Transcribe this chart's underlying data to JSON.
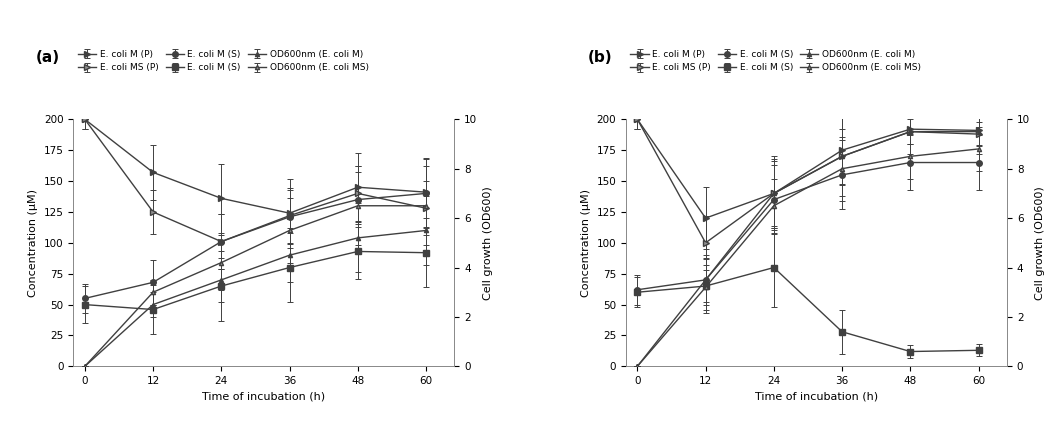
{
  "time": [
    0,
    12,
    24,
    36,
    48,
    60
  ],
  "panel_a": {
    "ecoli_M_P": {
      "y": [
        200,
        157,
        136,
        124,
        145,
        141
      ],
      "yerr": [
        8,
        22,
        28,
        28,
        28,
        28
      ]
    },
    "ecoli_MS_P": {
      "y": [
        200,
        125,
        101,
        122,
        140,
        128
      ],
      "yerr": [
        8,
        18,
        22,
        22,
        22,
        22
      ]
    },
    "ecoli_M_S_up": {
      "y": [
        55,
        68,
        101,
        121,
        135,
        140
      ],
      "yerr": [
        12,
        18,
        22,
        22,
        22,
        28
      ]
    },
    "ecoli_M_S_down": {
      "y": [
        50,
        46,
        65,
        80,
        93,
        92
      ],
      "yerr": [
        15,
        20,
        28,
        28,
        22,
        28
      ]
    },
    "OD_M": {
      "y_od": [
        0,
        2.5,
        3.5,
        4.5,
        5.2,
        5.5
      ],
      "yerr": [
        0,
        0.5,
        0.9,
        1.1,
        1.4,
        1.4
      ]
    },
    "OD_MS": {
      "y_od": [
        0,
        3.0,
        4.2,
        5.5,
        6.5,
        6.5
      ],
      "yerr": [
        0,
        0.5,
        1.1,
        1.3,
        1.6,
        1.6
      ]
    }
  },
  "panel_b": {
    "ecoli_M_P": {
      "y": [
        200,
        120,
        140,
        175,
        192,
        191
      ],
      "yerr": [
        8,
        25,
        30,
        28,
        12,
        12
      ]
    },
    "ecoli_MS_P": {
      "y": [
        200,
        100,
        140,
        170,
        190,
        188
      ],
      "yerr": [
        8,
        22,
        28,
        22,
        10,
        10
      ]
    },
    "ecoli_M_S_up": {
      "y": [
        62,
        70,
        135,
        155,
        165,
        165
      ],
      "yerr": [
        12,
        20,
        28,
        28,
        22,
        22
      ]
    },
    "ecoli_M_S_down": {
      "y": [
        60,
        65,
        80,
        28,
        12,
        13
      ],
      "yerr": [
        12,
        22,
        32,
        18,
        5,
        5
      ]
    },
    "OD_M": {
      "y_od": [
        0,
        3.5,
        7.0,
        8.5,
        9.5,
        9.5
      ],
      "yerr": [
        0,
        0.9,
        1.3,
        1.6,
        0.9,
        0.9
      ]
    },
    "OD_MS": {
      "y_od": [
        0,
        3.2,
        6.5,
        8.0,
        8.5,
        8.8
      ],
      "yerr": [
        0,
        0.9,
        1.1,
        1.3,
        0.9,
        0.9
      ]
    }
  },
  "ylim_conc": [
    0,
    200
  ],
  "ylim_od": [
    0,
    10
  ],
  "yticks_conc": [
    0,
    25,
    50,
    75,
    100,
    125,
    150,
    175,
    200
  ],
  "yticks_od": [
    0,
    2,
    4,
    6,
    8,
    10
  ],
  "xticks": [
    0,
    12,
    24,
    36,
    48,
    60
  ],
  "xlabel": "Time of incubation (h)",
  "ylabel_left": "Concentration (µM)",
  "ylabel_right": "Cell growth (OD600)",
  "legend_labels": [
    "E. coli M (P)",
    "E. coli MS (P)",
    "E. coli M (S)",
    "E. coli M (S)",
    "OD600nm (E. coli M)",
    "OD600nm (E. coli MS)"
  ],
  "line_color": "#404040",
  "bg_color": "#ffffff"
}
